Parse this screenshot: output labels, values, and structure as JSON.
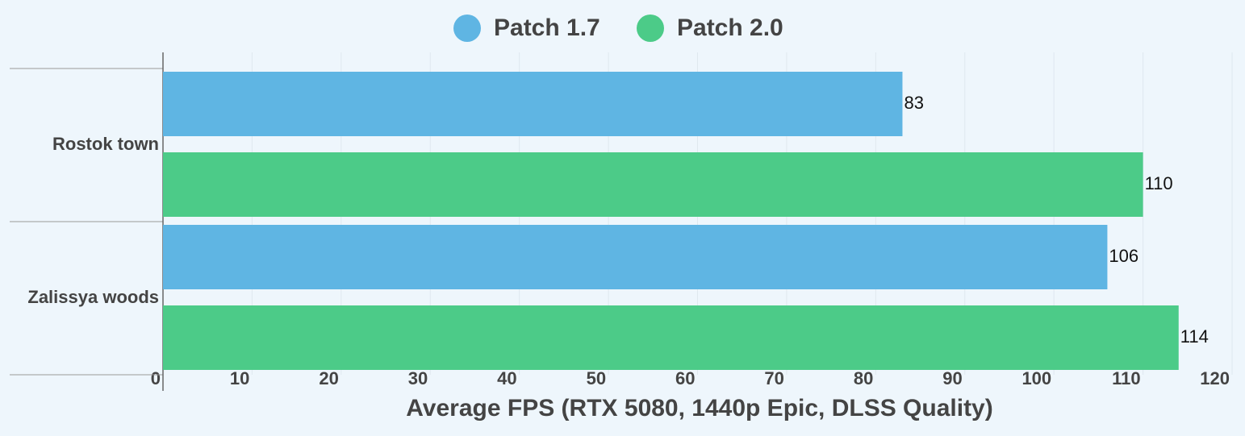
{
  "chart_data": {
    "type": "bar",
    "orientation": "horizontal",
    "xlabel": "Average FPS (RTX 5080, 1440p Epic, DLSS Quality)",
    "categories": [
      "Rostok town",
      "Zalissya woods"
    ],
    "series": [
      {
        "name": "Patch 1.7",
        "color": "#5fb5e3",
        "values": [
          83,
          106
        ]
      },
      {
        "name": "Patch 2.0",
        "color": "#4ccb88",
        "values": [
          110,
          114
        ]
      }
    ],
    "xlim": [
      0,
      120
    ],
    "xticks": [
      0,
      10,
      20,
      30,
      40,
      50,
      60,
      70,
      80,
      90,
      100,
      110,
      120
    ],
    "grid": true,
    "legend": "top"
  }
}
